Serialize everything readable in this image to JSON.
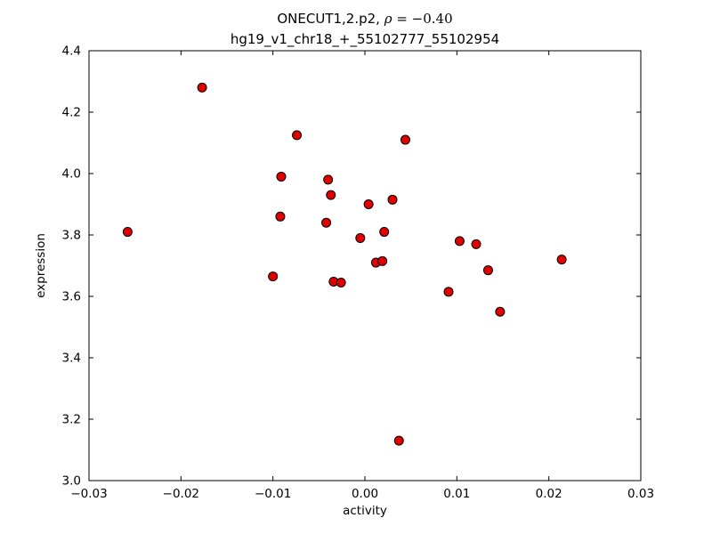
{
  "chart_data": {
    "type": "scatter",
    "title": {
      "line1_prefix": "ONECUT1,2.p2, ",
      "line1_rho": "ρ",
      "line1_math_rest": " = −0.40",
      "line2": "hg19_v1_chr18_+_55102777_55102954"
    },
    "xlabel": "activity",
    "ylabel": "expression",
    "xlim": [
      -0.03,
      0.03
    ],
    "ylim": [
      3.0,
      4.4
    ],
    "x_ticks": [
      -0.03,
      -0.02,
      -0.01,
      0.0,
      0.01,
      0.02,
      0.03
    ],
    "x_tick_labels": [
      "−0.03",
      "−0.02",
      "−0.01",
      "0.00",
      "0.01",
      "0.02",
      "0.03"
    ],
    "y_ticks": [
      3.0,
      3.2,
      3.4,
      3.6,
      3.8,
      4.0,
      4.2,
      4.4
    ],
    "y_tick_labels": [
      "3.0",
      "3.2",
      "3.4",
      "3.6",
      "3.8",
      "4.0",
      "4.2",
      "4.4"
    ],
    "legend": "off",
    "grid": "off",
    "marker": {
      "shape": "circle",
      "fill_color": "#e00000",
      "edge_color": "#000000",
      "radius": 5
    },
    "points": [
      [
        -0.0258,
        3.81
      ],
      [
        -0.0177,
        4.28
      ],
      [
        -0.01,
        3.665
      ],
      [
        -0.0092,
        3.86
      ],
      [
        -0.0091,
        3.99
      ],
      [
        -0.0074,
        4.125
      ],
      [
        -0.004,
        3.98
      ],
      [
        -0.0037,
        3.93
      ],
      [
        -0.0042,
        3.84
      ],
      [
        -0.0034,
        3.648
      ],
      [
        -0.0026,
        3.645
      ],
      [
        -0.0005,
        3.79
      ],
      [
        0.0004,
        3.9
      ],
      [
        0.0012,
        3.71
      ],
      [
        0.0019,
        3.715
      ],
      [
        0.0021,
        3.81
      ],
      [
        0.003,
        3.915
      ],
      [
        0.0044,
        4.11
      ],
      [
        0.0037,
        3.13
      ],
      [
        0.0091,
        3.615
      ],
      [
        0.0103,
        3.78
      ],
      [
        0.0121,
        3.77
      ],
      [
        0.0134,
        3.685
      ],
      [
        0.0147,
        3.55
      ],
      [
        0.0214,
        3.72
      ]
    ]
  }
}
